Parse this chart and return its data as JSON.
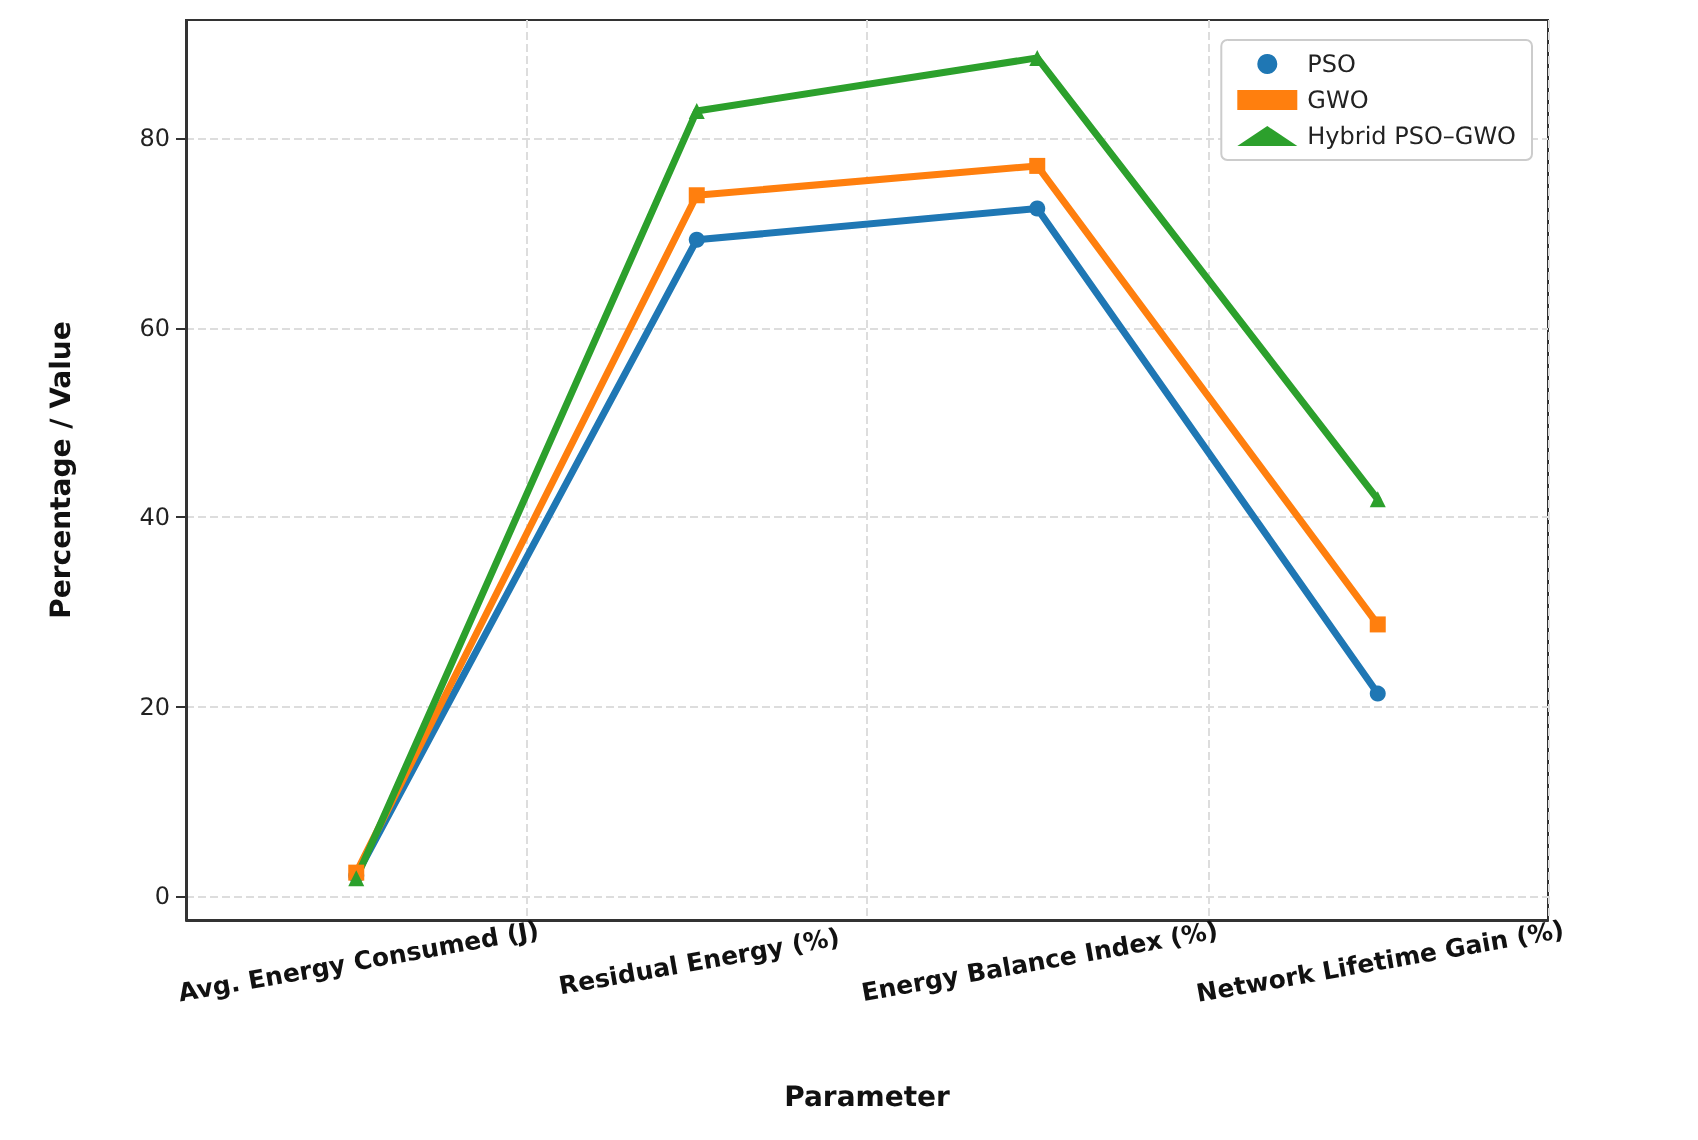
{
  "chart_data": {
    "type": "line",
    "xlabel": "Parameter",
    "ylabel": "Percentage / Value",
    "categories": [
      "Avg. Energy Consumed (J)",
      "Residual Energy (%)",
      "Energy Balance Index (%)",
      "Network Lifetime Gain (%)"
    ],
    "series": [
      {
        "name": "PSO",
        "color": "#1f77b4",
        "marker": "circle",
        "values": [
          2.2,
          69.3,
          72.6,
          21.4
        ]
      },
      {
        "name": "GWO",
        "color": "#ff7f0e",
        "marker": "square",
        "values": [
          2.5,
          74.0,
          77.1,
          28.7
        ]
      },
      {
        "name": "Hybrid PSO–GWO",
        "color": "#2ca02c",
        "marker": "triangle",
        "values": [
          1.9,
          82.9,
          88.5,
          41.9
        ]
      }
    ],
    "ylim": [
      -2.5,
      92.5
    ],
    "yticks": [
      0,
      20,
      40,
      60,
      80
    ],
    "grid": true,
    "legend": "top right",
    "line_style": "solid"
  }
}
